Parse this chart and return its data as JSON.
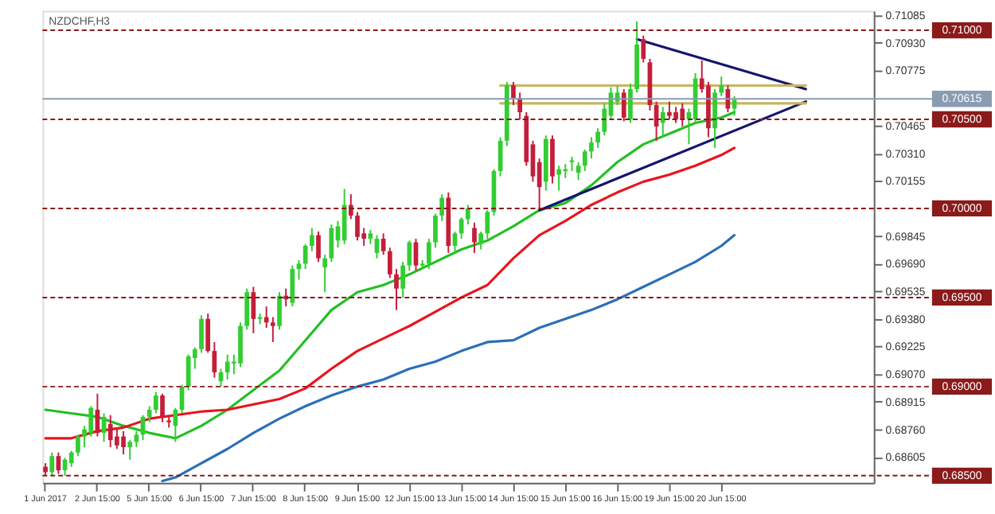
{
  "chart_data": {
    "type": "candlestick",
    "title": "NZDCHF,H3",
    "categories": [
      "1 Jun 2017",
      null,
      null,
      null,
      null,
      null,
      null,
      null,
      "2 Jun 15:00",
      null,
      null,
      null,
      null,
      null,
      null,
      null,
      "5 Jun 15:00",
      null,
      null,
      null,
      null,
      null,
      null,
      null,
      "6 Jun 15:00",
      null,
      null,
      null,
      null,
      null,
      null,
      null,
      "7 Jun 15:00",
      null,
      null,
      null,
      null,
      null,
      null,
      null,
      "8 Jun 15:00",
      null,
      null,
      null,
      null,
      null,
      null,
      null,
      "9 Jun 15:00",
      null,
      null,
      null,
      null,
      null,
      null,
      null,
      "12 Jun 15:00",
      null,
      null,
      null,
      null,
      null,
      null,
      null,
      "13 Jun 15:00",
      null,
      null,
      null,
      null,
      null,
      null,
      null,
      "14 Jun 15:00",
      null,
      null,
      null,
      null,
      null,
      null,
      null,
      "15 Jun 15:00",
      null,
      null,
      null,
      null,
      null,
      null,
      null,
      "16 Jun 15:00",
      null,
      null,
      null,
      null,
      null,
      null,
      null,
      "19 Jun 15:00",
      null,
      null,
      null,
      null,
      null,
      null,
      null,
      "20 Jun 15:00",
      null,
      null,
      null,
      null,
      null,
      null,
      null,
      null,
      null,
      null,
      null,
      null,
      null,
      null,
      null,
      null,
      null,
      null,
      null,
      null,
      null,
      null,
      null
    ],
    "ohlc": [
      [
        0.6855,
        0.6857,
        0.685,
        0.6852
      ],
      [
        0.6852,
        0.6863,
        0.685,
        0.6861
      ],
      [
        0.6861,
        0.6863,
        0.6851,
        0.6853
      ],
      [
        0.6853,
        0.686,
        0.685,
        0.6859
      ],
      [
        0.6857,
        0.6864,
        0.6855,
        0.6863
      ],
      [
        0.6863,
        0.6873,
        0.6861,
        0.6872
      ],
      [
        0.6872,
        0.6878,
        0.6866,
        0.6876
      ],
      [
        0.6874,
        0.6889,
        0.6872,
        0.6888
      ],
      [
        0.6887,
        0.6896,
        0.6872,
        0.6874
      ],
      [
        0.6874,
        0.6885,
        0.6869,
        0.6883
      ],
      [
        0.6879,
        0.6884,
        0.6866,
        0.687
      ],
      [
        0.6872,
        0.6876,
        0.6865,
        0.6867
      ],
      [
        0.6872,
        0.6875,
        0.6862,
        0.6866
      ],
      [
        0.6866,
        0.687,
        0.6859,
        0.6869
      ],
      [
        0.6869,
        0.6875,
        0.6866,
        0.6873
      ],
      [
        0.6873,
        0.6884,
        0.687,
        0.6883
      ],
      [
        0.6883,
        0.6889,
        0.688,
        0.6887
      ],
      [
        0.6887,
        0.6897,
        0.6885,
        0.6895
      ],
      [
        0.6895,
        0.6896,
        0.688,
        0.6883
      ],
      [
        0.6881,
        0.6883,
        0.6877,
        0.688
      ],
      [
        0.6878,
        0.6888,
        0.6869,
        0.6887
      ],
      [
        0.6887,
        0.6901,
        0.6885,
        0.69
      ],
      [
        0.69,
        0.6918,
        0.6898,
        0.6917
      ],
      [
        0.6916,
        0.6922,
        0.691,
        0.6921
      ],
      [
        0.6921,
        0.694,
        0.6919,
        0.6938
      ],
      [
        0.6938,
        0.6941,
        0.6919,
        0.692
      ],
      [
        0.692,
        0.6925,
        0.6905,
        0.6908
      ],
      [
        0.6903,
        0.691,
        0.69,
        0.6908
      ],
      [
        0.6908,
        0.6918,
        0.6904,
        0.6914
      ],
      [
        0.6913,
        0.6918,
        0.6907,
        0.6914
      ],
      [
        0.6913,
        0.6936,
        0.6911,
        0.6934
      ],
      [
        0.6934,
        0.6955,
        0.6932,
        0.6953
      ],
      [
        0.6953,
        0.6956,
        0.693,
        0.6938
      ],
      [
        0.6938,
        0.6941,
        0.6935,
        0.6939
      ],
      [
        0.6939,
        0.6945,
        0.6933,
        0.6936
      ],
      [
        0.6936,
        0.6939,
        0.6925,
        0.6934
      ],
      [
        0.6934,
        0.6953,
        0.6932,
        0.6951
      ],
      [
        0.6951,
        0.6955,
        0.6945,
        0.6949
      ],
      [
        0.6947,
        0.6968,
        0.6945,
        0.6966
      ],
      [
        0.6966,
        0.6971,
        0.696,
        0.6969
      ],
      [
        0.6969,
        0.698,
        0.6966,
        0.6979
      ],
      [
        0.6979,
        0.6989,
        0.6976,
        0.6985
      ],
      [
        0.6985,
        0.6987,
        0.697,
        0.6972
      ],
      [
        0.6967,
        0.6974,
        0.6953,
        0.6972
      ],
      [
        0.6972,
        0.6991,
        0.697,
        0.6989
      ],
      [
        0.6982,
        0.6993,
        0.6978,
        0.699
      ],
      [
        0.6982,
        0.7011,
        0.698,
        0.7002
      ],
      [
        0.7002,
        0.7008,
        0.6994,
        0.6996
      ],
      [
        0.6996,
        0.6998,
        0.6982,
        0.6984
      ],
      [
        0.6986,
        0.6989,
        0.6979,
        0.6983
      ],
      [
        0.6983,
        0.6988,
        0.698,
        0.6986
      ],
      [
        0.6975,
        0.6985,
        0.6972,
        0.6983
      ],
      [
        0.6983,
        0.6986,
        0.6974,
        0.6976
      ],
      [
        0.6976,
        0.6978,
        0.6961,
        0.6963
      ],
      [
        0.6963,
        0.6966,
        0.6943,
        0.6955
      ],
      [
        0.6955,
        0.697,
        0.695,
        0.6968
      ],
      [
        0.6968,
        0.6982,
        0.6965,
        0.6981
      ],
      [
        0.6981,
        0.6983,
        0.6965,
        0.6968
      ],
      [
        0.6968,
        0.6971,
        0.6966,
        0.6969
      ],
      [
        0.6969,
        0.6983,
        0.6966,
        0.6981
      ],
      [
        0.6981,
        0.6997,
        0.6978,
        0.6996
      ],
      [
        0.6996,
        0.7008,
        0.6993,
        0.7006
      ],
      [
        0.7006,
        0.7009,
        0.6975,
        0.6979
      ],
      [
        0.6979,
        0.6987,
        0.6976,
        0.6986
      ],
      [
        0.6986,
        0.6995,
        0.6983,
        0.6994
      ],
      [
        0.6994,
        0.7002,
        0.6991,
        0.7
      ],
      [
        0.6989,
        0.6992,
        0.6975,
        0.6981
      ],
      [
        0.698,
        0.6987,
        0.6977,
        0.6986
      ],
      [
        0.6986,
        0.6999,
        0.6983,
        0.6998
      ],
      [
        0.6998,
        0.7022,
        0.6996,
        0.7021
      ],
      [
        0.7021,
        0.704,
        0.7018,
        0.7038
      ],
      [
        0.7038,
        0.7071,
        0.7035,
        0.7069
      ],
      [
        0.7069,
        0.7071,
        0.7058,
        0.7062
      ],
      [
        0.7062,
        0.7065,
        0.705,
        0.7054
      ],
      [
        0.7052,
        0.7054,
        0.7024,
        0.7026
      ],
      [
        0.7036,
        0.7038,
        0.7015,
        0.7018
      ],
      [
        0.7026,
        0.7028,
        0.7,
        0.7012
      ],
      [
        0.7015,
        0.7041,
        0.701,
        0.7039
      ],
      [
        0.7039,
        0.7041,
        0.7014,
        0.7018
      ],
      [
        0.7019,
        0.7024,
        0.701,
        0.7022
      ],
      [
        0.7021,
        0.7025,
        0.7017,
        0.7022
      ],
      [
        0.7026,
        0.7029,
        0.7021,
        0.7027
      ],
      [
        0.702,
        0.7026,
        0.7016,
        0.7024
      ],
      [
        0.7024,
        0.7033,
        0.7021,
        0.7032
      ],
      [
        0.7032,
        0.704,
        0.7028,
        0.7037
      ],
      [
        0.7037,
        0.7045,
        0.7034,
        0.7043
      ],
      [
        0.7043,
        0.7059,
        0.7041,
        0.7056
      ],
      [
        0.7052,
        0.7068,
        0.705,
        0.7065
      ],
      [
        0.706,
        0.7069,
        0.7058,
        0.7065
      ],
      [
        0.7065,
        0.7067,
        0.7049,
        0.7051
      ],
      [
        0.705,
        0.707,
        0.7048,
        0.7067
      ],
      [
        0.7067,
        0.7105,
        0.7065,
        0.7092
      ],
      [
        0.7095,
        0.7097,
        0.7082,
        0.7084
      ],
      [
        0.7082,
        0.7084,
        0.7055,
        0.7058
      ],
      [
        0.7058,
        0.706,
        0.7038,
        0.7046
      ],
      [
        0.7048,
        0.7057,
        0.704,
        0.7054
      ],
      [
        0.7054,
        0.706,
        0.705,
        0.7052
      ],
      [
        0.7054,
        0.7057,
        0.7048,
        0.705
      ],
      [
        0.7056,
        0.7059,
        0.7046,
        0.705
      ],
      [
        0.705,
        0.7056,
        0.7036,
        0.7054
      ],
      [
        0.705,
        0.7076,
        0.7048,
        0.7073
      ],
      [
        0.7073,
        0.7083,
        0.7065,
        0.7067
      ],
      [
        0.7069,
        0.7071,
        0.704,
        0.7045
      ],
      [
        0.7045,
        0.7067,
        0.7034,
        0.7065
      ],
      [
        0.7065,
        0.7074,
        0.7063,
        0.7069
      ],
      [
        0.7067,
        0.7069,
        0.7054,
        0.7056
      ],
      [
        0.7056,
        0.7063,
        0.7052,
        0.7061
      ],
      null,
      null,
      null,
      null,
      null,
      null,
      null,
      null,
      null,
      null,
      null,
      null,
      null,
      null,
      null,
      null,
      null,
      null,
      null,
      null,
      null
    ],
    "colors": [
      "#c41e3a",
      "#32cd32",
      "#c41e3a",
      "#32cd32",
      "#32cd32",
      "#32cd32",
      "#32cd32",
      "#32cd32",
      "#c41e3a",
      "#32cd32",
      "#c41e3a",
      "#c41e3a",
      "#c41e3a",
      "#32cd32",
      "#32cd32",
      "#32cd32",
      "#32cd32",
      "#32cd32",
      "#c41e3a",
      "#c41e3a",
      "#32cd32",
      "#32cd32",
      "#32cd32",
      "#32cd32",
      "#32cd32",
      "#c41e3a",
      "#c41e3a",
      "#32cd32",
      "#32cd32",
      "#32cd32",
      "#32cd32",
      "#32cd32",
      "#c41e3a",
      "#32cd32",
      "#c41e3a",
      "#c41e3a",
      "#32cd32",
      "#c41e3a",
      "#32cd32",
      "#32cd32",
      "#32cd32",
      "#32cd32",
      "#c41e3a",
      "#32cd32",
      "#32cd32",
      "#32cd32",
      "#32cd32",
      "#c41e3a",
      "#c41e3a",
      "#c41e3a",
      "#32cd32",
      "#32cd32",
      "#c41e3a",
      "#c41e3a",
      "#c41e3a",
      "#32cd32",
      "#32cd32",
      "#c41e3a",
      "#32cd32",
      "#32cd32",
      "#32cd32",
      "#32cd32",
      "#c41e3a",
      "#32cd32",
      "#32cd32",
      "#32cd32",
      "#c41e3a",
      "#32cd32",
      "#32cd32",
      "#32cd32",
      "#32cd32",
      "#32cd32",
      "#c41e3a",
      "#c41e3a",
      "#c41e3a",
      "#c41e3a",
      "#c41e3a",
      "#32cd32",
      "#c41e3a",
      "#32cd32",
      "#32cd32",
      "#32cd32",
      "#32cd32",
      "#32cd32",
      "#32cd32",
      "#32cd32",
      "#32cd32",
      "#32cd32",
      "#32cd32",
      "#c41e3a",
      "#32cd32",
      "#32cd32",
      "#c41e3a",
      "#c41e3a",
      "#c41e3a",
      "#32cd32",
      "#c41e3a",
      "#c41e3a",
      "#c41e3a",
      "#32cd32",
      "#32cd32",
      "#c41e3a",
      "#c41e3a",
      "#32cd32",
      "#32cd32",
      "#c41e3a",
      "#32cd32",
      null,
      null,
      null,
      null,
      null,
      null,
      null,
      null,
      null,
      null,
      null,
      null,
      null,
      null,
      null,
      null,
      null,
      null,
      null,
      null,
      null
    ],
    "series": [
      {
        "type": "line",
        "color": "#22c022",
        "values": [
          0.6887,
          null,
          null,
          null,
          0.6885,
          null,
          null,
          null,
          0.6883,
          null,
          null,
          null,
          0.6878,
          null,
          null,
          null,
          0.6874,
          null,
          null,
          null,
          0.6871,
          null,
          null,
          null,
          0.6878,
          null,
          null,
          null,
          0.6887,
          null,
          null,
          null,
          0.6898,
          null,
          null,
          null,
          0.6909,
          null,
          null,
          null,
          0.6926,
          null,
          null,
          null,
          0.6943,
          null,
          null,
          null,
          0.6953,
          null,
          null,
          null,
          0.6957,
          null,
          null,
          null,
          0.6963,
          null,
          null,
          null,
          0.697,
          null,
          null,
          null,
          0.6977,
          null,
          null,
          null,
          0.6982,
          null,
          null,
          null,
          0.699,
          null,
          null,
          null,
          0.6999,
          null,
          null,
          null,
          0.7003,
          null,
          null,
          null,
          0.7013,
          null,
          null,
          null,
          0.7026,
          null,
          null,
          null,
          0.7036,
          null,
          null,
          null,
          0.7042,
          null,
          null,
          null,
          0.7048,
          null,
          null,
          null,
          0.7051,
          null,
          0.7054,
          null,
          null,
          null,
          null,
          null,
          null,
          null,
          null,
          null,
          null,
          null,
          null,
          null,
          null,
          null,
          null,
          null,
          null,
          null,
          null,
          null
        ]
      },
      {
        "type": "line",
        "color": "#e8141e",
        "values": [
          0.6871,
          null,
          null,
          null,
          0.6871,
          null,
          null,
          null,
          0.6875,
          null,
          null,
          null,
          0.6877,
          null,
          null,
          null,
          0.6882,
          null,
          null,
          null,
          0.6884,
          null,
          null,
          null,
          0.6886,
          null,
          null,
          null,
          0.6887,
          null,
          null,
          null,
          0.689,
          null,
          null,
          null,
          0.6893,
          null,
          null,
          null,
          0.6899,
          null,
          null,
          null,
          0.691,
          null,
          null,
          null,
          0.692,
          null,
          null,
          null,
          0.6927,
          null,
          null,
          null,
          0.6934,
          null,
          null,
          null,
          0.6942,
          null,
          null,
          null,
          0.695,
          null,
          null,
          null,
          0.6957,
          null,
          null,
          null,
          0.6972,
          null,
          null,
          null,
          0.6985,
          null,
          null,
          null,
          0.6993,
          null,
          null,
          null,
          0.7002,
          null,
          null,
          null,
          0.7009,
          null,
          null,
          null,
          0.7015,
          null,
          null,
          null,
          0.7019,
          null,
          null,
          null,
          0.7024,
          null,
          null,
          null,
          0.703,
          null,
          0.7034,
          null,
          null,
          null,
          null,
          null,
          null,
          null,
          null,
          null,
          null,
          null,
          null,
          null,
          null,
          null,
          null,
          null,
          null,
          null,
          null,
          null
        ]
      },
      {
        "type": "line",
        "color": "#2a6fb8",
        "values": [
          null,
          null,
          null,
          null,
          null,
          null,
          null,
          null,
          null,
          null,
          null,
          null,
          null,
          null,
          null,
          null,
          null,
          null,
          0.6847,
          null,
          0.6849,
          null,
          null,
          null,
          0.6857,
          null,
          null,
          null,
          0.6865,
          null,
          null,
          null,
          0.6874,
          null,
          null,
          null,
          0.6882,
          null,
          null,
          null,
          0.6889,
          null,
          null,
          null,
          0.6895,
          null,
          null,
          null,
          0.69,
          null,
          null,
          null,
          0.6904,
          null,
          null,
          null,
          0.691,
          null,
          null,
          null,
          0.6914,
          null,
          null,
          null,
          0.692,
          null,
          null,
          null,
          0.6925,
          null,
          null,
          null,
          0.6926,
          null,
          null,
          null,
          0.6933,
          null,
          null,
          null,
          0.6938,
          null,
          null,
          null,
          0.6943,
          null,
          null,
          null,
          0.6949,
          null,
          null,
          null,
          0.6956,
          null,
          null,
          null,
          0.6963,
          null,
          null,
          null,
          0.697,
          null,
          null,
          null,
          0.6979,
          null,
          0.6985,
          null,
          null,
          null,
          null,
          null,
          null,
          null,
          null,
          null,
          null,
          null,
          null,
          null,
          null,
          null,
          null,
          null,
          null,
          null,
          null,
          null
        ]
      },
      {
        "type": "line",
        "color": "#14146e",
        "values": [
          null,
          null,
          null,
          null,
          null,
          null,
          null,
          null,
          null,
          null,
          null,
          null,
          null,
          null,
          null,
          null,
          null,
          null,
          null,
          null,
          null,
          null,
          null,
          null,
          null,
          null,
          null,
          null,
          null,
          null,
          null,
          null,
          null,
          null,
          null,
          null,
          null,
          null,
          null,
          null,
          null,
          null,
          null,
          null,
          null,
          null,
          null,
          null,
          null,
          null,
          null,
          null,
          null,
          null,
          null,
          null,
          null,
          null,
          null,
          null,
          null,
          null,
          null,
          null,
          null,
          null,
          null,
          null,
          null,
          null,
          null,
          null,
          null,
          null,
          null,
          null,
          0.6999,
          null,
          null,
          null,
          null,
          null,
          null,
          null,
          null,
          null,
          null,
          null,
          null,
          null,
          null,
          null,
          null,
          null,
          null,
          null,
          null,
          null,
          null,
          null,
          null,
          null,
          null,
          null,
          null,
          null,
          null,
          null,
          null,
          null,
          null,
          null,
          null,
          null,
          null,
          null,
          null,
          0.706,
          null,
          null,
          null,
          null,
          null,
          null,
          null,
          null,
          null,
          null
        ]
      },
      {
        "type": "line",
        "color": "#14146e",
        "values": [
          null,
          null,
          null,
          null,
          null,
          null,
          null,
          null,
          null,
          null,
          null,
          null,
          null,
          null,
          null,
          null,
          null,
          null,
          null,
          null,
          null,
          null,
          null,
          null,
          null,
          null,
          null,
          null,
          null,
          null,
          null,
          null,
          null,
          null,
          null,
          null,
          null,
          null,
          null,
          null,
          null,
          null,
          null,
          null,
          null,
          null,
          null,
          null,
          null,
          null,
          null,
          null,
          null,
          null,
          null,
          null,
          null,
          null,
          null,
          null,
          null,
          null,
          null,
          null,
          null,
          null,
          null,
          null,
          null,
          null,
          null,
          null,
          null,
          null,
          null,
          null,
          null,
          null,
          null,
          null,
          null,
          null,
          null,
          null,
          null,
          null,
          null,
          null,
          null,
          null,
          null,
          0.7095,
          null,
          null,
          null,
          null,
          null,
          null,
          null,
          null,
          null,
          null,
          null,
          null,
          null,
          null,
          null,
          null,
          null,
          null,
          null,
          null,
          null,
          null,
          null,
          null,
          null,
          0.7067,
          null,
          null,
          null,
          null,
          null,
          null,
          null,
          null,
          null,
          null
        ]
      },
      {
        "type": "line",
        "color": "#c8b560",
        "values": [
          null,
          null,
          null,
          null,
          null,
          null,
          null,
          null,
          null,
          null,
          null,
          null,
          null,
          null,
          null,
          null,
          null,
          null,
          null,
          null,
          null,
          null,
          null,
          null,
          null,
          null,
          null,
          null,
          null,
          null,
          null,
          null,
          null,
          null,
          null,
          null,
          null,
          null,
          null,
          null,
          null,
          null,
          null,
          null,
          null,
          null,
          null,
          null,
          null,
          null,
          null,
          null,
          null,
          null,
          null,
          null,
          null,
          null,
          null,
          null,
          null,
          null,
          null,
          null,
          null,
          null,
          null,
          null,
          null,
          null,
          0.7069,
          null,
          null,
          null,
          null,
          null,
          null,
          null,
          null,
          null,
          null,
          null,
          null,
          null,
          null,
          null,
          null,
          null,
          null,
          null,
          null,
          null,
          null,
          null,
          null,
          null,
          null,
          null,
          null,
          null,
          null,
          null,
          null,
          null,
          null,
          null,
          null,
          null,
          null,
          null,
          null,
          null,
          null,
          null,
          null,
          null,
          null,
          0.7069,
          null,
          null,
          null,
          null,
          null,
          null,
          null,
          null,
          null,
          null
        ]
      },
      {
        "type": "line",
        "color": "#c8b560",
        "values": [
          null,
          null,
          null,
          null,
          null,
          null,
          null,
          null,
          null,
          null,
          null,
          null,
          null,
          null,
          null,
          null,
          null,
          null,
          null,
          null,
          null,
          null,
          null,
          null,
          null,
          null,
          null,
          null,
          null,
          null,
          null,
          null,
          null,
          null,
          null,
          null,
          null,
          null,
          null,
          null,
          null,
          null,
          null,
          null,
          null,
          null,
          null,
          null,
          null,
          null,
          null,
          null,
          null,
          null,
          null,
          null,
          null,
          null,
          null,
          null,
          null,
          null,
          null,
          null,
          null,
          null,
          null,
          null,
          null,
          null,
          0.7059,
          null,
          null,
          null,
          null,
          null,
          null,
          null,
          null,
          null,
          null,
          null,
          null,
          null,
          null,
          null,
          null,
          null,
          null,
          null,
          null,
          null,
          null,
          null,
          null,
          null,
          null,
          null,
          null,
          null,
          null,
          null,
          null,
          null,
          null,
          null,
          null,
          null,
          null,
          null,
          null,
          null,
          null,
          null,
          null,
          null,
          null,
          0.7059,
          null,
          null,
          null,
          null,
          null,
          null,
          null,
          null,
          null,
          null
        ]
      }
    ],
    "ylim": [
      0.6846,
      0.7111
    ],
    "yticks": [
      {
        "value": 0.71085,
        "label": "0.71085"
      },
      {
        "value": 0.7093,
        "label": "0.70930"
      },
      {
        "value": 0.70775,
        "label": "0.70775"
      },
      {
        "value": 0.70465,
        "label": "0.70465"
      },
      {
        "value": 0.7031,
        "label": "0.70310"
      },
      {
        "value": 0.70155,
        "label": "0.70155"
      },
      {
        "value": 0.69845,
        "label": "0.69845"
      },
      {
        "value": 0.6969,
        "label": "0.69690"
      },
      {
        "value": 0.69535,
        "label": "0.69535"
      },
      {
        "value": 0.6938,
        "label": "0.69380"
      },
      {
        "value": 0.69225,
        "label": "0.69225"
      },
      {
        "value": 0.6907,
        "label": "0.69070"
      },
      {
        "value": 0.68915,
        "label": "0.68915"
      },
      {
        "value": 0.6876,
        "label": "0.68760"
      },
      {
        "value": 0.68605,
        "label": "0.68605"
      }
    ],
    "ref_lines": [
      {
        "axis": "y",
        "value": 0.71,
        "label": "0.71000",
        "color": "#8b1a1a",
        "line_style": "dashed"
      },
      {
        "axis": "y",
        "value": 0.70615,
        "label": "0.70615",
        "color": "#8a9cb2",
        "line_style": "solid"
      },
      {
        "axis": "y",
        "value": 0.705,
        "label": "0.70500",
        "color": "#8b1a1a",
        "line_style": "dashed"
      },
      {
        "axis": "y",
        "value": 0.7,
        "label": "0.70000",
        "color": "#8b1a1a",
        "line_style": "dashed"
      },
      {
        "axis": "y",
        "value": 0.695,
        "label": "0.69500",
        "color": "#8b1a1a",
        "line_style": "dashed"
      },
      {
        "axis": "y",
        "value": 0.69,
        "label": "0.69000",
        "color": "#8b1a1a",
        "line_style": "dashed"
      },
      {
        "axis": "y",
        "value": 0.685,
        "label": "0.68500",
        "color": "#8b1a1a",
        "line_style": "dashed"
      }
    ]
  }
}
